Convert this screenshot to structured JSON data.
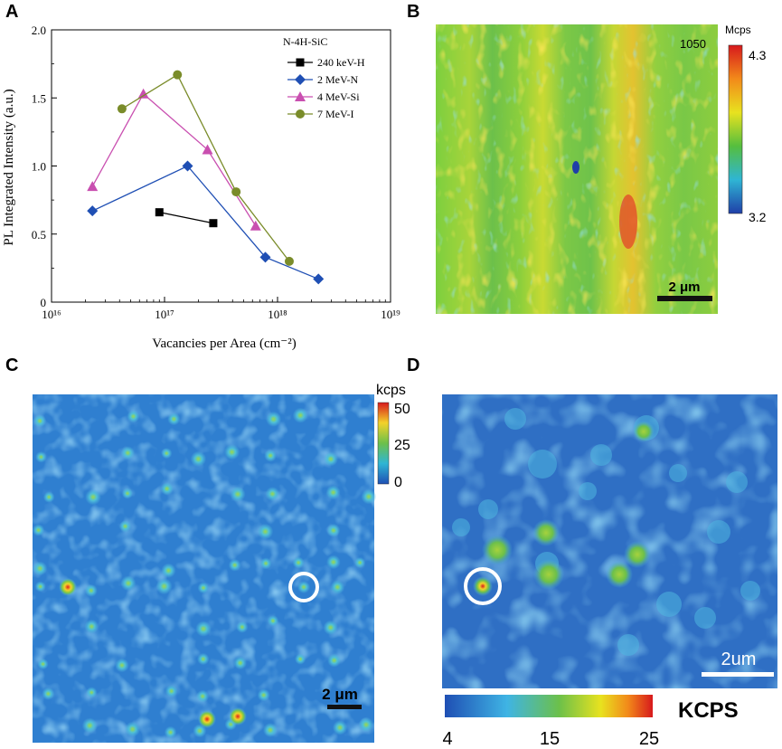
{
  "panels": {
    "a": "A",
    "b": "B",
    "c": "C",
    "d": "D"
  },
  "chart_data": {
    "type": "line",
    "title": "",
    "xscale": "log",
    "xlabel": "Vacancies per Area (cm⁻²)",
    "ylabel": "PL Integrated Intensity (a.u.)",
    "xlim_exp": [
      16,
      19
    ],
    "ylim": [
      0,
      2.0
    ],
    "xtick_labels": [
      "10¹⁶",
      "10¹⁷",
      "10¹⁸",
      "10¹⁹"
    ],
    "ytick_labels": [
      "0",
      "0.5",
      "1.0",
      "1.5",
      "2.0"
    ],
    "legend_title": "N-4H-SiC",
    "legend_position": "top-right",
    "series": [
      {
        "name": "240 keV-H",
        "marker": "square",
        "color": "#000000",
        "x": [
          9e+16,
          2.7e+17
        ],
        "y": [
          0.66,
          0.58
        ]
      },
      {
        "name": "2 MeV-N",
        "marker": "diamond",
        "color": "#1f4fb4",
        "x": [
          2.3e+16,
          1.6e+17,
          7.8e+17,
          2.3e+18
        ],
        "y": [
          0.67,
          1.0,
          0.33,
          0.17
        ]
      },
      {
        "name": "4 MeV-Si",
        "marker": "triangle",
        "color": "#c94fb0",
        "x": [
          2.3e+16,
          6.5e+16,
          2.4e+17,
          6.4e+17
        ],
        "y": [
          0.85,
          1.53,
          1.12,
          0.56
        ]
      },
      {
        "name": "7 MeV-I",
        "marker": "circle",
        "color": "#7a8c2a",
        "x": [
          4.2e+16,
          1.3e+17,
          4.3e+17,
          1.27e+18
        ],
        "y": [
          1.42,
          1.67,
          0.81,
          0.3
        ]
      }
    ]
  },
  "map_b": {
    "colorbar_unit": "Mcps",
    "colorbar_max": "4.3",
    "colorbar_min": "3.2",
    "corner_label": "1050",
    "scalebar": "2 μm"
  },
  "map_c": {
    "colorbar_unit": "kcps",
    "ticks": [
      "50",
      "25",
      "0"
    ],
    "scalebar": "2 μm"
  },
  "map_d": {
    "scalebar": "2um",
    "colorbar_unit": "KCPS",
    "ticks": [
      "4",
      "15",
      "25"
    ]
  },
  "colors": {
    "line_h": "#000000",
    "line_n": "#1f4fb4",
    "line_si": "#c94fb0",
    "line_i": "#7a8c2a"
  }
}
